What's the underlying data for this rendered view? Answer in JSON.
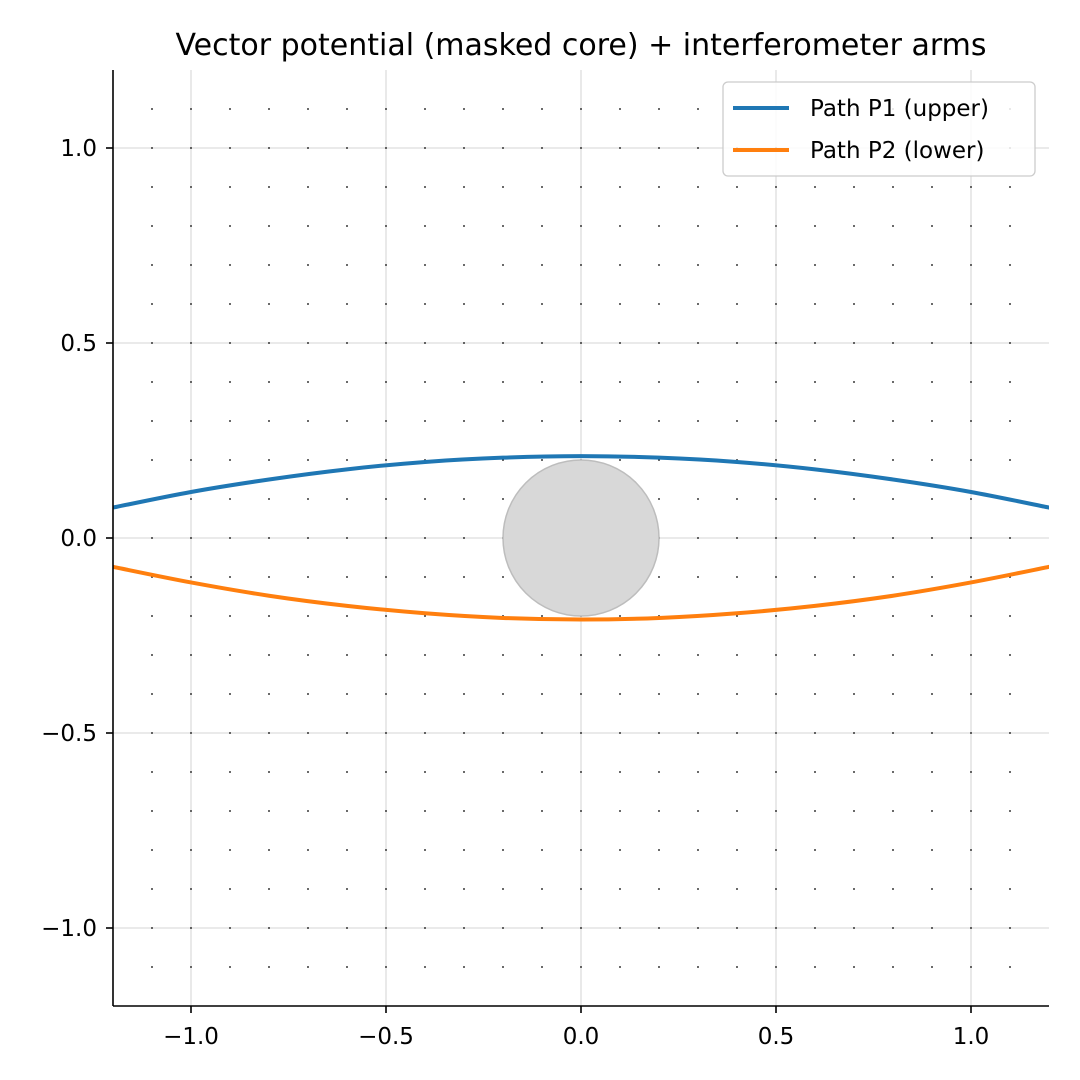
{
  "chart_data": {
    "type": "line",
    "title": "Vector potential (masked core) + interferometer arms",
    "xlabel": "",
    "ylabel": "",
    "xlim": [
      -1.2,
      1.2
    ],
    "ylim": [
      -1.2,
      1.2
    ],
    "x_ticks": [
      -1.0,
      -0.5,
      0.0,
      0.5,
      1.0
    ],
    "x_tick_labels": [
      "−1.0",
      "−0.5",
      "0.0",
      "0.5",
      "1.0"
    ],
    "y_ticks": [
      -1.0,
      -0.5,
      0.0,
      0.5,
      1.0
    ],
    "y_tick_labels": [
      "−1.0",
      "−0.5",
      "0.0",
      "0.5",
      "1.0"
    ],
    "grid": true,
    "legend_position": "top-right",
    "series": [
      {
        "name": "Path P1 (upper)",
        "color": "#1f77b4",
        "x": [
          -1.2,
          -1.0,
          -0.8,
          -0.6,
          -0.4,
          -0.2,
          0.0,
          0.2,
          0.4,
          0.6,
          0.8,
          1.0,
          1.2
        ],
        "y": [
          0.078,
          0.118,
          0.15,
          0.176,
          0.195,
          0.206,
          0.21,
          0.206,
          0.195,
          0.176,
          0.15,
          0.118,
          0.078
        ]
      },
      {
        "name": "Path P2 (lower)",
        "color": "#ff7f0e",
        "x": [
          -1.2,
          -1.0,
          -0.8,
          -0.6,
          -0.4,
          -0.2,
          0.0,
          0.2,
          0.4,
          0.6,
          0.8,
          1.0,
          1.2
        ],
        "y": [
          -0.074,
          -0.114,
          -0.148,
          -0.174,
          -0.193,
          -0.205,
          -0.209,
          -0.205,
          -0.193,
          -0.174,
          -0.148,
          -0.114,
          -0.074
        ]
      }
    ],
    "masked_core": {
      "center": [
        0.0,
        0.0
      ],
      "radius": 0.2,
      "color": "#d8d8d8",
      "edge_color": "#bdbdbd"
    },
    "vector_field_dots": {
      "spacing": 0.1,
      "color": "#000000"
    }
  }
}
